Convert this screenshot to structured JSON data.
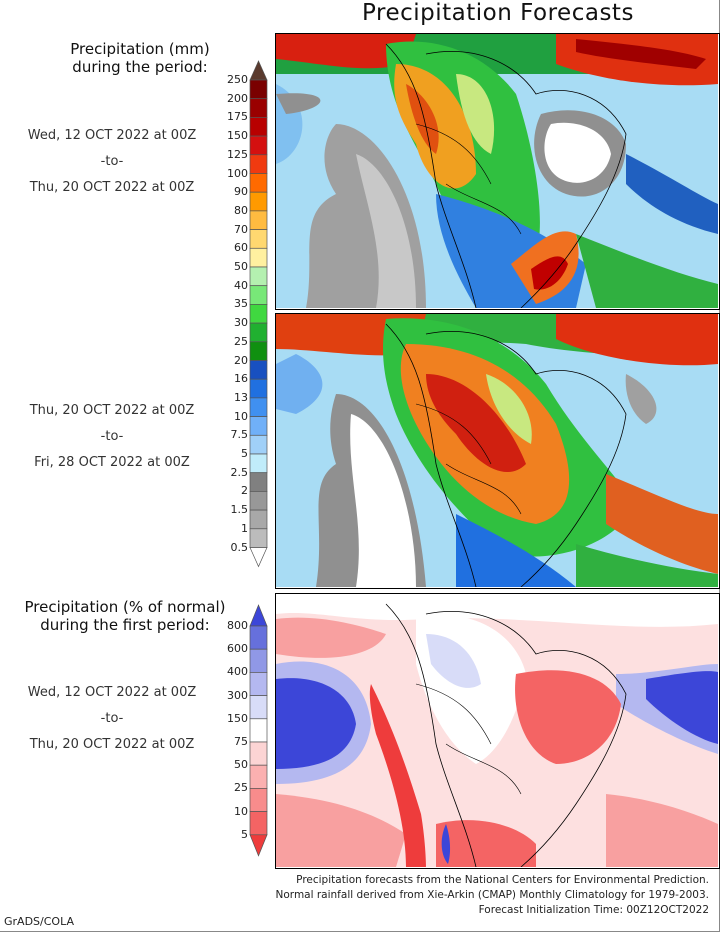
{
  "title": "Precipitation Forecasts",
  "panel1": {
    "heading_line1": "Precipitation (mm)",
    "heading_line2": "during the period:",
    "start": "Wed, 12 OCT 2022 at 00Z",
    "sep": "-to-",
    "end": "Thu, 20 OCT 2022 at 00Z"
  },
  "panel2": {
    "start": "Thu, 20 OCT 2022 at 00Z",
    "sep": "-to-",
    "end": "Fri, 28 OCT 2022 at 00Z"
  },
  "panel3": {
    "heading_line1": "Precipitation (% of normal)",
    "heading_line2": "during the first period:",
    "start": "Wed, 12 OCT 2022 at 00Z",
    "sep": "-to-",
    "end": "Thu, 20 OCT 2022 at 00Z"
  },
  "precip_scale": {
    "labels": [
      "250",
      "200",
      "175",
      "150",
      "125",
      "100",
      "90",
      "80",
      "70",
      "60",
      "50",
      "40",
      "35",
      "30",
      "25",
      "20",
      "16",
      "13",
      "10",
      "7.5",
      "5",
      "2.5",
      "2",
      "1.5",
      "1",
      "0.5"
    ],
    "colors": [
      "#5a3a2e",
      "#7a0000",
      "#9a0000",
      "#b80000",
      "#d41010",
      "#f03a10",
      "#ff6a00",
      "#ff9a00",
      "#ffbb40",
      "#ffd870",
      "#fff0a0",
      "#b4f0b0",
      "#78e878",
      "#40d840",
      "#20b030",
      "#109010",
      "#1850c0",
      "#2070e0",
      "#4090f0",
      "#70b0f8",
      "#a0d0f8",
      "#c0ecfa",
      "#808080",
      "#989898",
      "#a8a8a8",
      "#bcbcbc",
      "#ffffff"
    ]
  },
  "pct_scale": {
    "labels": [
      "800",
      "600",
      "400",
      "300",
      "150",
      "75",
      "50",
      "25",
      "10",
      "5"
    ],
    "colors": [
      "#3c46d8",
      "#6670dc",
      "#9098e6",
      "#b4b8f0",
      "#d8dcf8",
      "#ffffff",
      "#fcd4d4",
      "#fbb0b0",
      "#f88c8c",
      "#f46464",
      "#ee3c3c"
    ]
  },
  "footer": {
    "line1": "Precipitation forecasts from the National Centers for Environmental Prediction.",
    "line2": "Normal rainfall derived from Xie-Arkin (CMAP) Monthly Climatology for 1979-2003.",
    "line3": "Forecast Initialization Time: 00Z12OCT2022"
  },
  "credit": "GrADS/COLA"
}
